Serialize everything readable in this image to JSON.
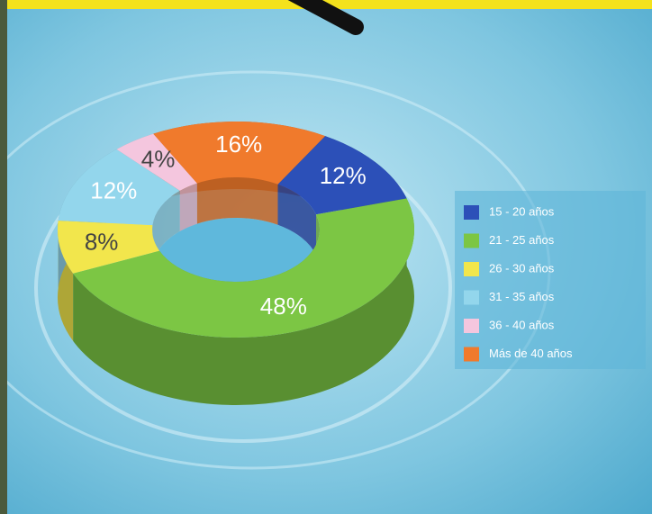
{
  "chart_data": {
    "type": "pie",
    "categories": [
      "15 - 20 años",
      "21 - 25 años",
      "26 - 30 años",
      "31 - 35 años",
      "36 - 40 años",
      "Más de 40 años"
    ],
    "values": [
      12,
      48,
      8,
      12,
      4,
      16
    ],
    "value_labels": [
      "12%",
      "48%",
      "8%",
      "12%",
      "4%",
      "16%"
    ],
    "colors": [
      "#2c50b8",
      "#7cc644",
      "#f2e64c",
      "#93d6ec",
      "#f4c6de",
      "#f07a2c"
    ]
  }
}
